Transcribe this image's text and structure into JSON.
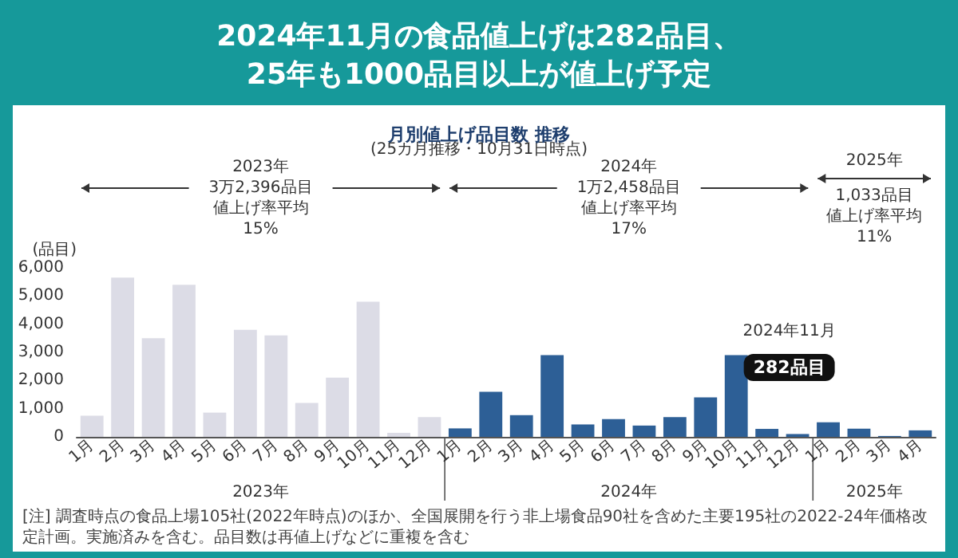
{
  "chart_data": {
    "type": "bar",
    "title": "2024年11月の食品値上げは282品目、\n25年も1000品目以上が値上げ予定",
    "subtitle": "月別値上げ品目数 推移",
    "ylabel": "(品目)",
    "categories": [
      "1月",
      "2月",
      "3月",
      "4月",
      "5月",
      "6月",
      "7月",
      "8月",
      "9月",
      "10月",
      "11月",
      "12月",
      "1月",
      "2月",
      "3月",
      "4月",
      "5月",
      "6月",
      "7月",
      "8月",
      "9月",
      "10月",
      "11月",
      "12月",
      "1月",
      "2月",
      "3月",
      "4月"
    ],
    "values": [
      750,
      5650,
      3500,
      5400,
      860,
      3800,
      3600,
      1200,
      2100,
      4800,
      140,
      700,
      300,
      1600,
      770,
      2900,
      440,
      630,
      400,
      700,
      1400,
      2900,
      282,
      100,
      520,
      290,
      30,
      230
    ],
    "colors": [
      "#dcdce6",
      "#dcdce6",
      "#dcdce6",
      "#dcdce6",
      "#dcdce6",
      "#dcdce6",
      "#dcdce6",
      "#dcdce6",
      "#dcdce6",
      "#dcdce6",
      "#dcdce6",
      "#dcdce6",
      "#2d5f96",
      "#2d5f96",
      "#2d5f96",
      "#2d5f96",
      "#2d5f96",
      "#2d5f96",
      "#2d5f96",
      "#2d5f96",
      "#2d5f96",
      "#2d5f96",
      "#2d5f96",
      "#2d5f96",
      "#2d5f96",
      "#2d5f96",
      "#2d5f96",
      "#2d5f96"
    ],
    "value_labels": [
      null,
      null,
      null,
      null,
      null,
      null,
      null,
      null,
      null,
      null,
      null,
      null,
      null,
      null,
      null,
      null,
      null,
      null,
      null,
      null,
      null,
      null,
      "282品目",
      null,
      null,
      null,
      null,
      null
    ],
    "ylim": [
      0,
      6000
    ],
    "yticks": [
      0,
      {
        "value": 1000,
        "label": "1,000"
      },
      {
        "value": 2000,
        "label": "2,000"
      },
      {
        "value": 3000,
        "label": "3,000"
      },
      {
        "value": 4000,
        "label": "4,000"
      },
      {
        "value": 5000,
        "label": "5,000"
      },
      {
        "value": 6000,
        "label": "6,000"
      }
    ],
    "grid": false,
    "annotations": [
      "(25カ月推移・10月31日時点)",
      "2023年",
      "3万2,396品目",
      "値上げ率平均",
      "15%",
      "2024年",
      "1万2,458品目",
      "値上げ率平均",
      "17%",
      "2025年",
      "1,033品目",
      "値上げ率平均",
      "11%",
      "2023年",
      "2024年",
      "2025年",
      "2024年11月",
      "[注] 調査時点の食品上場105社(2022年時点)のほか、全国展開を行う非上場食品90社を含めた主要195社の2022-24年価格改定計画。実施済みを含む。品目数は再値上げなどに重複を含む"
    ]
  }
}
